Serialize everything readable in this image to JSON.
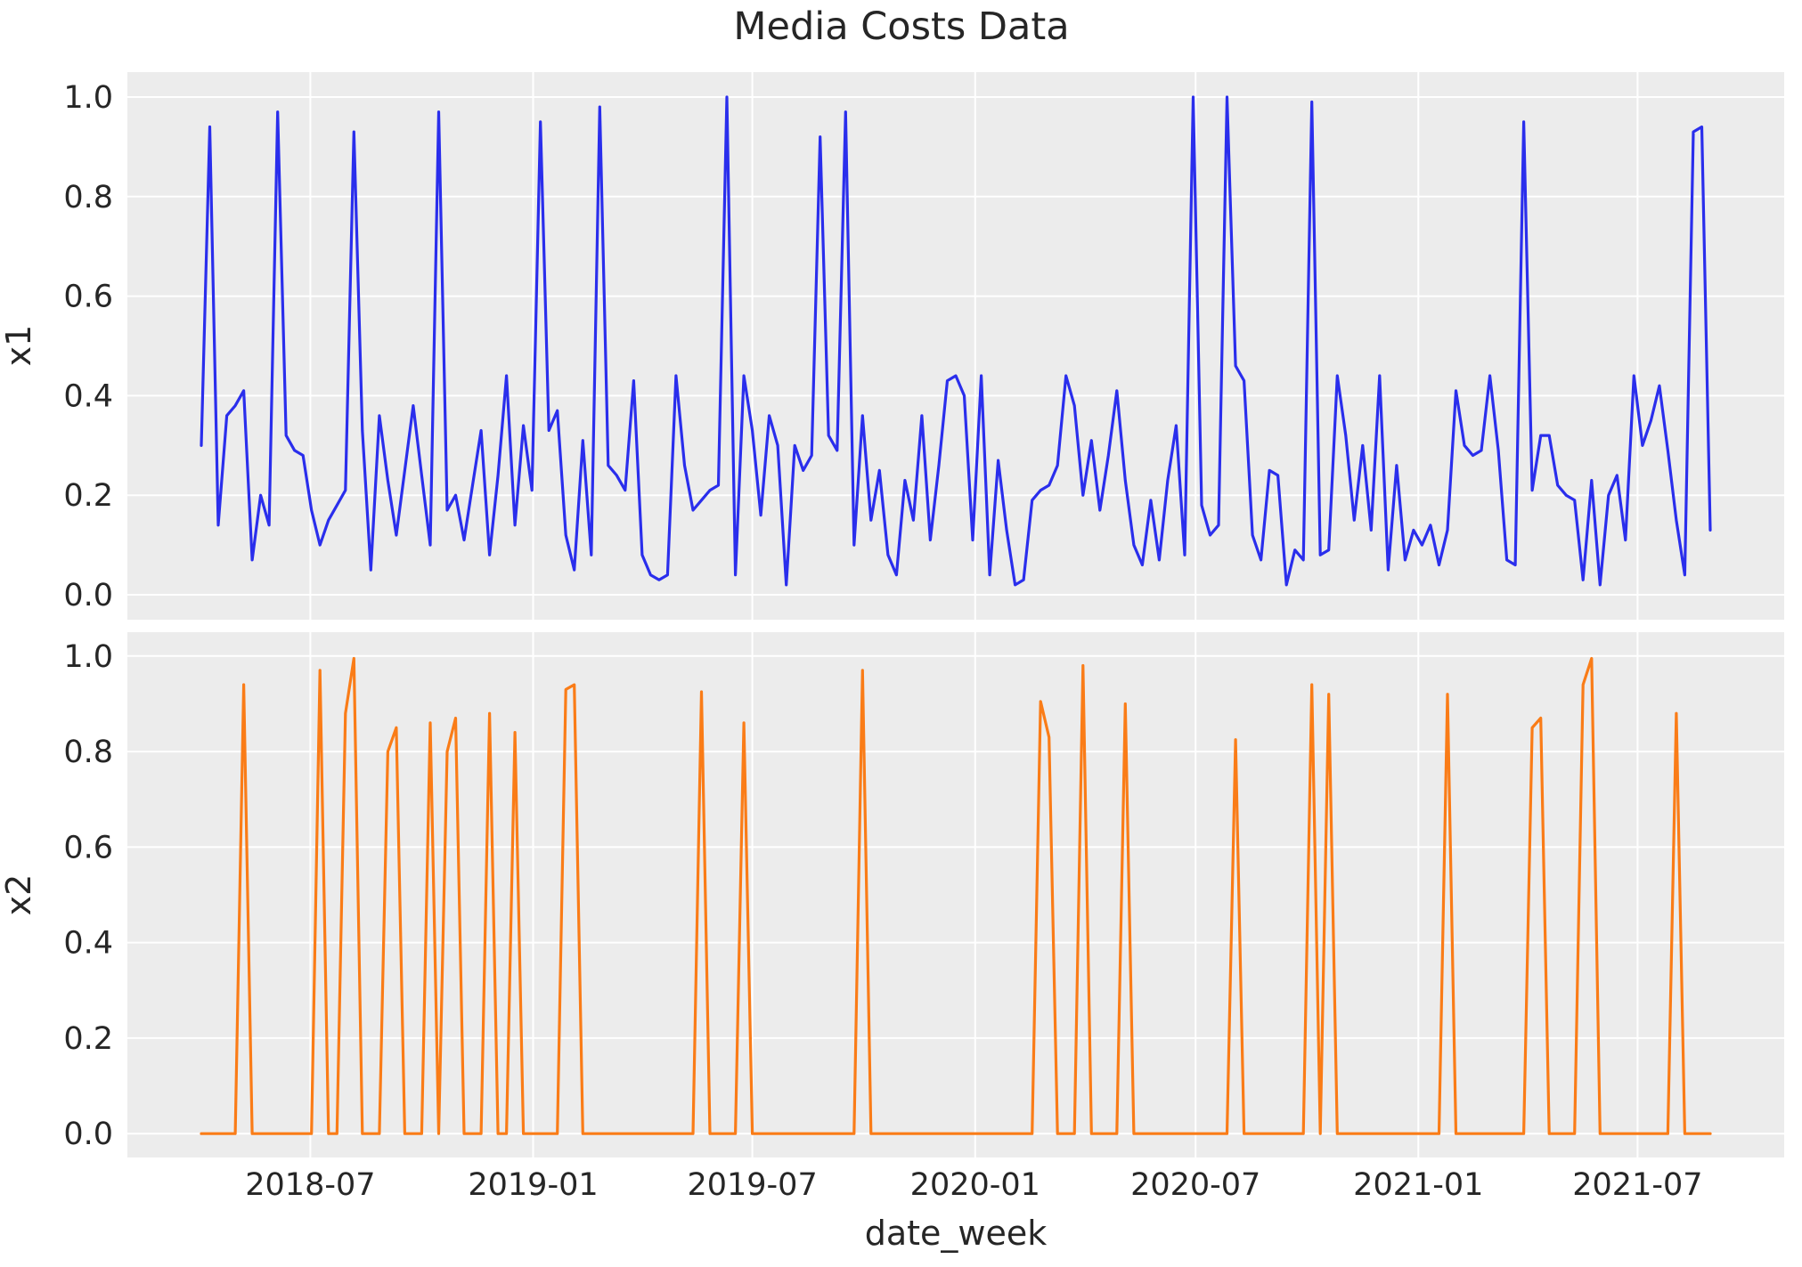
{
  "chart_data": {
    "type": "line",
    "title": "Media Costs Data",
    "xlabel": "date_week",
    "grid": true,
    "legend": false,
    "style": {
      "figure_bg": "#ffffff",
      "plot_bg": "#ececec",
      "grid_color": "#ffffff",
      "text_color": "#262626"
    },
    "y_ticks": [
      {
        "label": "0.0",
        "value": 0.0
      },
      {
        "label": "0.2",
        "value": 0.2
      },
      {
        "label": "0.4",
        "value": 0.4
      },
      {
        "label": "0.6",
        "value": 0.6
      },
      {
        "label": "0.8",
        "value": 0.8
      },
      {
        "label": "1.0",
        "value": 1.0
      }
    ],
    "x_ticks": [
      {
        "label": "2018-07",
        "week": 12.857
      },
      {
        "label": "2019-01",
        "week": 39.143
      },
      {
        "label": "2019-07",
        "week": 65.0
      },
      {
        "label": "2020-01",
        "week": 91.286
      },
      {
        "label": "2020-07",
        "week": 117.286
      },
      {
        "label": "2021-01",
        "week": 143.571
      },
      {
        "label": "2021-07",
        "week": 169.429
      }
    ],
    "x_unit": "week",
    "ylim": [
      -0.05,
      1.05
    ],
    "subplots": [
      {
        "ylabel": "x1",
        "color": "#2a2eec",
        "values": [
          0.3,
          0.94,
          0.14,
          0.36,
          0.38,
          0.41,
          0.07,
          0.2,
          0.14,
          0.97,
          0.32,
          0.29,
          0.28,
          0.17,
          0.1,
          0.15,
          0.18,
          0.21,
          0.93,
          0.33,
          0.05,
          0.36,
          0.23,
          0.12,
          0.25,
          0.38,
          0.24,
          0.1,
          0.97,
          0.17,
          0.2,
          0.11,
          0.22,
          0.33,
          0.08,
          0.24,
          0.44,
          0.14,
          0.34,
          0.21,
          0.95,
          0.33,
          0.37,
          0.12,
          0.05,
          0.31,
          0.08,
          0.98,
          0.26,
          0.24,
          0.21,
          0.43,
          0.08,
          0.04,
          0.03,
          0.04,
          0.44,
          0.26,
          0.17,
          0.19,
          0.21,
          0.22,
          1.0,
          0.04,
          0.44,
          0.33,
          0.16,
          0.36,
          0.3,
          0.02,
          0.3,
          0.25,
          0.28,
          0.92,
          0.32,
          0.29,
          0.97,
          0.1,
          0.36,
          0.15,
          0.25,
          0.08,
          0.04,
          0.23,
          0.15,
          0.36,
          0.11,
          0.26,
          0.43,
          0.44,
          0.4,
          0.11,
          0.44,
          0.04,
          0.27,
          0.13,
          0.02,
          0.03,
          0.19,
          0.21,
          0.22,
          0.26,
          0.44,
          0.38,
          0.2,
          0.31,
          0.17,
          0.28,
          0.41,
          0.23,
          0.1,
          0.06,
          0.19,
          0.07,
          0.23,
          0.34,
          0.08,
          1.0,
          0.18,
          0.12,
          0.14,
          1.0,
          0.46,
          0.43,
          0.12,
          0.07,
          0.25,
          0.24,
          0.02,
          0.09,
          0.07,
          0.99,
          0.08,
          0.09,
          0.44,
          0.32,
          0.15,
          0.3,
          0.13,
          0.44,
          0.05,
          0.26,
          0.07,
          0.13,
          0.1,
          0.14,
          0.06,
          0.13,
          0.41,
          0.3,
          0.28,
          0.29,
          0.44,
          0.29,
          0.07,
          0.06,
          0.95,
          0.21,
          0.32,
          0.32,
          0.22,
          0.2,
          0.19,
          0.03,
          0.23,
          0.02,
          0.2,
          0.24,
          0.11,
          0.44,
          0.3,
          0.35,
          0.42,
          0.29,
          0.15,
          0.04,
          0.93,
          0.94,
          0.13
        ]
      },
      {
        "ylabel": "x2",
        "color": "#fa7c17",
        "values": [
          0,
          0,
          0,
          0,
          0,
          0.94,
          0,
          0,
          0,
          0,
          0,
          0,
          0,
          0,
          0.97,
          0,
          0,
          0.88,
          0.995,
          0,
          0,
          0,
          0.8,
          0.85,
          0,
          0,
          0,
          0.86,
          0,
          0.8,
          0.87,
          0,
          0,
          0,
          0.88,
          0,
          0,
          0.84,
          0,
          0,
          0,
          0,
          0,
          0.93,
          0.94,
          0,
          0,
          0,
          0,
          0,
          0,
          0,
          0,
          0,
          0,
          0,
          0,
          0,
          0,
          0.925,
          0,
          0,
          0,
          0,
          0.86,
          0,
          0,
          0,
          0,
          0,
          0,
          0,
          0,
          0,
          0,
          0,
          0,
          0,
          0.97,
          0,
          0,
          0,
          0,
          0,
          0,
          0,
          0,
          0,
          0,
          0,
          0,
          0,
          0,
          0,
          0,
          0,
          0,
          0,
          0,
          0.905,
          0.83,
          0,
          0,
          0,
          0.98,
          0,
          0,
          0,
          0,
          0.9,
          0,
          0,
          0,
          0,
          0,
          0,
          0,
          0,
          0,
          0,
          0,
          0,
          0.825,
          0,
          0,
          0,
          0,
          0,
          0,
          0,
          0,
          0.94,
          0,
          0.92,
          0,
          0,
          0,
          0,
          0,
          0,
          0,
          0,
          0,
          0,
          0,
          0,
          0,
          0.92,
          0,
          0,
          0,
          0,
          0,
          0,
          0,
          0,
          0,
          0.85,
          0.87,
          0,
          0,
          0,
          0,
          0.94,
          0.995,
          0,
          0,
          0,
          0,
          0,
          0,
          0,
          0,
          0,
          0.88,
          0,
          0,
          0,
          0
        ]
      }
    ]
  }
}
